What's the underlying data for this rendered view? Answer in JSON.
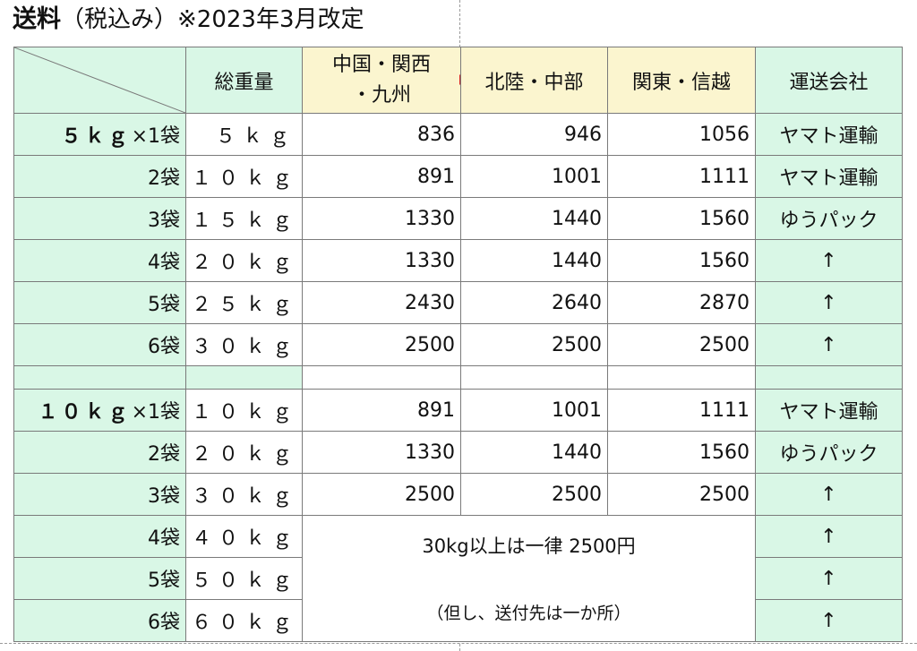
{
  "title": {
    "main": "送料",
    "note": "（税込み）※2023年3月改定"
  },
  "header": {
    "total_weight": "総重量",
    "region1_line1": "中国・関西",
    "region1_line2": "・九州",
    "region2": "北陸・中部",
    "region3": "関東・信越",
    "carrier": "運送会社"
  },
  "section1": {
    "label_bold": "５ｋｇ",
    "label_rest": "×1袋",
    "rows": [
      {
        "bags": "",
        "weight": "５ｋｇ",
        "p1": "836",
        "p2": "946",
        "p3": "1056",
        "carrier": "ヤマト運輸"
      },
      {
        "bags": "2袋",
        "weight": "１０ｋｇ",
        "p1": "891",
        "p2": "1001",
        "p3": "1111",
        "carrier": "ヤマト運輸"
      },
      {
        "bags": "3袋",
        "weight": "１５ｋｇ",
        "p1": "1330",
        "p2": "1440",
        "p3": "1560",
        "carrier": "ゆうパック"
      },
      {
        "bags": "4袋",
        "weight": "２０ｋｇ",
        "p1": "1330",
        "p2": "1440",
        "p3": "1560",
        "carrier": "↑"
      },
      {
        "bags": "5袋",
        "weight": "２５ｋｇ",
        "p1": "2430",
        "p2": "2640",
        "p3": "2870",
        "carrier": "↑"
      },
      {
        "bags": "6袋",
        "weight": "３０ｋｇ",
        "p1": "2500",
        "p2": "2500",
        "p3": "2500",
        "carrier": "↑"
      }
    ]
  },
  "section2": {
    "label_bold": "１０ｋｇ",
    "label_rest": "×1袋",
    "rows": [
      {
        "bags": "",
        "weight": "１０ｋｇ",
        "p1": "891",
        "p2": "1001",
        "p3": "1111",
        "carrier": "ヤマト運輸"
      },
      {
        "bags": "2袋",
        "weight": "２０ｋｇ",
        "p1": "1330",
        "p2": "1440",
        "p3": "1560",
        "carrier": "ゆうパック"
      },
      {
        "bags": "3袋",
        "weight": "３０ｋｇ",
        "p1": "2500",
        "p2": "2500",
        "p3": "2500",
        "carrier": "↑"
      },
      {
        "bags": "4袋",
        "weight": "４０ｋｇ",
        "carrier": "↑"
      },
      {
        "bags": "5袋",
        "weight": "５０ｋｇ",
        "carrier": "↑"
      },
      {
        "bags": "6袋",
        "weight": "６０ｋｇ",
        "carrier": "↑"
      }
    ],
    "flat_rate_note": "30kg以上は一律 2500円",
    "destination_note": "（但し、送付先は一か所）"
  },
  "colors": {
    "green_cell": "#d9f7e6",
    "yellow_cell": "#fbf5cf",
    "marker_red": "#d42020"
  }
}
